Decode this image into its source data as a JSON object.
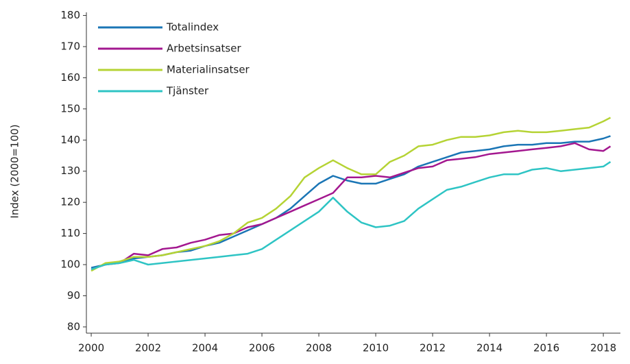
{
  "chart_data": {
    "type": "line",
    "y_label": "Index (2000=100)",
    "x": [
      2000,
      2000.5,
      2001,
      2001.5,
      2002,
      2002.5,
      2003,
      2003.5,
      2004,
      2004.5,
      2005,
      2005.5,
      2006,
      2006.5,
      2007,
      2007.5,
      2008,
      2008.5,
      2009,
      2009.5,
      2010,
      2010.5,
      2011,
      2011.5,
      2012,
      2012.5,
      2013,
      2013.5,
      2014,
      2014.5,
      2015,
      2015.5,
      2016,
      2016.5,
      2017,
      2017.5,
      2018,
      2018.25
    ],
    "series": [
      {
        "name": "Totalindex",
        "color": "#1a75b5",
        "values": [
          99,
          100,
          101,
          102,
          102.5,
          103,
          104,
          104.5,
          106,
          107,
          109,
          111,
          113,
          115,
          118,
          122,
          126,
          128.5,
          127,
          126,
          126,
          127.5,
          129,
          131.5,
          133,
          134.5,
          136,
          136.5,
          137,
          138,
          138.5,
          138.5,
          139,
          139,
          139.5,
          139.5,
          140.5,
          141.3
        ]
      },
      {
        "name": "Arbetsinsatser",
        "color": "#a3178f",
        "values": [
          98.5,
          100,
          100.5,
          103.5,
          103,
          105,
          105.5,
          107,
          108,
          109.5,
          110,
          112,
          113,
          115,
          117,
          119,
          121,
          123,
          128,
          128,
          128.5,
          128,
          129.5,
          131,
          131.5,
          133.5,
          134,
          134.5,
          135.5,
          136,
          136.5,
          137,
          137.5,
          138,
          139,
          137,
          136.5,
          138
        ]
      },
      {
        "name": "Materialinsatser",
        "color": "#b5d334",
        "values": [
          98,
          100.5,
          101,
          102.5,
          102.5,
          103,
          104,
          105,
          106,
          107.5,
          110,
          113.5,
          115,
          118,
          122,
          128,
          131,
          133.5,
          131,
          129,
          129,
          133,
          135,
          138,
          138.5,
          140,
          141,
          141,
          141.5,
          142.5,
          143,
          142.5,
          142.5,
          143,
          143.5,
          144,
          146,
          147.2
        ]
      },
      {
        "name": "Tjänster",
        "color": "#2ec4c4",
        "values": [
          98.5,
          100,
          100.5,
          101.5,
          100,
          100.5,
          101,
          101.5,
          102,
          102.5,
          103,
          103.5,
          105,
          108,
          111,
          114,
          117,
          121.5,
          117,
          113.5,
          112,
          112.5,
          114,
          118,
          121,
          124,
          125,
          126.5,
          128,
          129,
          129,
          130.5,
          131,
          130,
          130.5,
          131,
          131.5,
          133
        ]
      }
    ],
    "xlim": [
      1999.83,
      2018.6
    ],
    "ylim": [
      78,
      181
    ],
    "xticks": [
      2000,
      2002,
      2004,
      2006,
      2008,
      2010,
      2012,
      2014,
      2016,
      2018
    ],
    "yticks": [
      80,
      90,
      100,
      110,
      120,
      130,
      140,
      150,
      160,
      170,
      180
    ],
    "grid": false,
    "legend": "top-left"
  }
}
